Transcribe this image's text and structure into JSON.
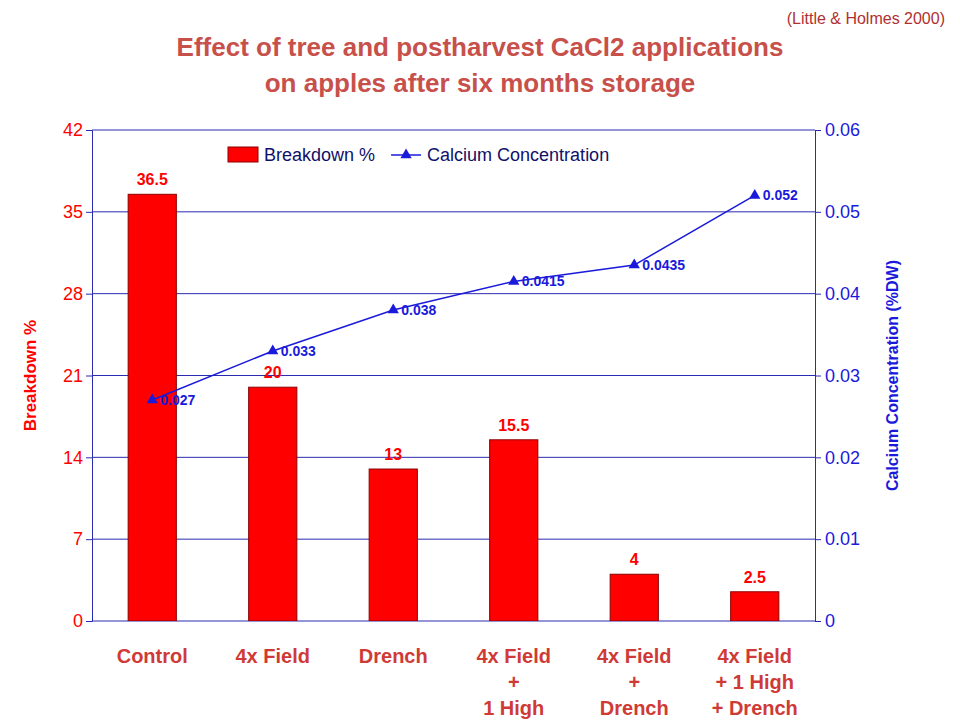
{
  "chart_data": {
    "type": "bar",
    "title": [
      "Effect of tree and postharvest CaCl2 applications",
      "on apples after six months storage"
    ],
    "annotation": "(Little & Holmes 2000)",
    "categories": [
      "Control",
      "4x Field",
      "Drench",
      "4x Field\n+\n1 High",
      "4x Field\n+\nDrench",
      "4x Field\n+ 1 High\n+ Drench"
    ],
    "series": [
      {
        "name": "Breakdown %",
        "type": "bar",
        "color": "#ff0000",
        "values": [
          36.5,
          20,
          13,
          15.5,
          4,
          2.5
        ]
      },
      {
        "name": "Calcium Concentration",
        "type": "line",
        "axis": "y2",
        "color": "#1a1adb",
        "marker": "triangle",
        "line_style": "solid",
        "values": [
          0.027,
          0.033,
          0.038,
          0.0415,
          0.0435,
          0.052
        ]
      }
    ],
    "y_label": "Breakdown %",
    "y2_label": "Calcium Concentration (%DW)",
    "ylim": [
      0,
      42
    ],
    "yticks": [
      0,
      7,
      14,
      21,
      28,
      35,
      42
    ],
    "y2lim": [
      0,
      0.06
    ],
    "y2ticks": [
      0,
      0.01,
      0.02,
      0.03,
      0.04,
      0.05,
      0.06
    ],
    "grid": true,
    "legend": "top",
    "data_labels": true
  }
}
